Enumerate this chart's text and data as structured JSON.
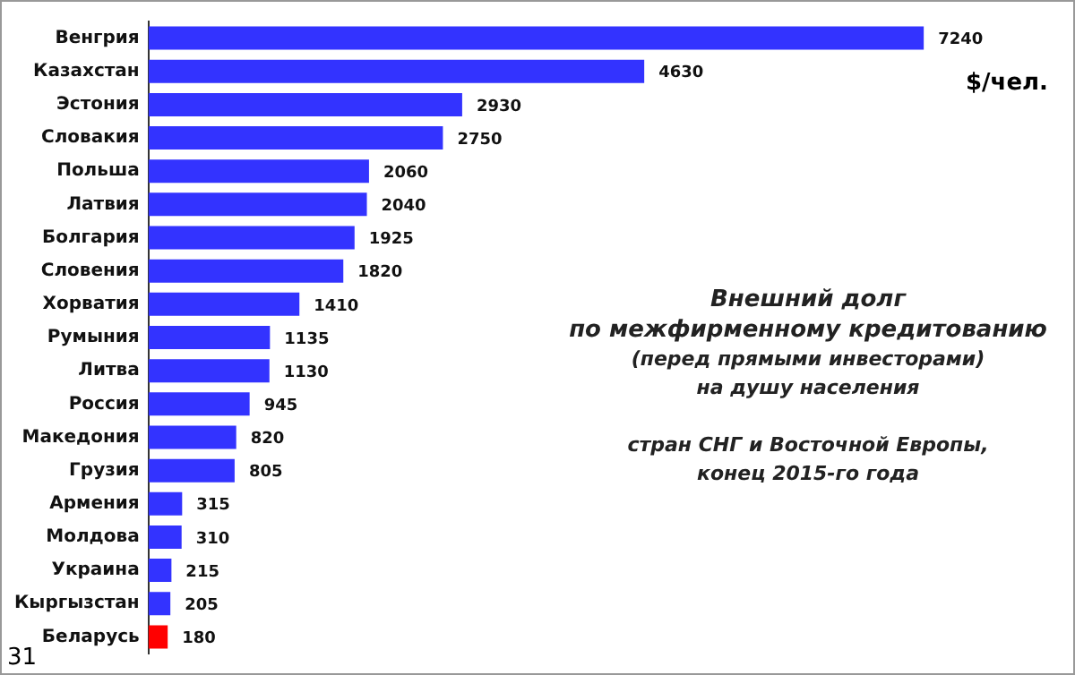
{
  "chart_data": {
    "type": "bar",
    "orientation": "horizontal",
    "title": "Внешний долг\nпо межфирменному кредитованию",
    "subtitle": "(перед прямыми инвесторами)\nна душу населения\n\nстран СНГ и Восточной Европы,\nконец 2015-го года",
    "xlabel": "$/чел.",
    "annotations": [
      "31"
    ],
    "categories": [
      "Венгрия",
      "Казахстан",
      "Эстония",
      "Словакия",
      "Польша",
      "Латвия",
      "Болгария",
      "Словения",
      "Хорватия",
      "Румыния",
      "Литва",
      "Россия",
      "Македония",
      "Грузия",
      "Армения",
      "Молдова",
      "Украина",
      "Кыргызстан",
      "Беларусь"
    ],
    "values": [
      7240,
      4630,
      2930,
      2750,
      2060,
      2040,
      1925,
      1820,
      1410,
      1135,
      1130,
      945,
      820,
      805,
      315,
      310,
      215,
      205,
      180
    ],
    "colors": [
      "#3333ff",
      "#3333ff",
      "#3333ff",
      "#3333ff",
      "#3333ff",
      "#3333ff",
      "#3333ff",
      "#3333ff",
      "#3333ff",
      "#3333ff",
      "#3333ff",
      "#3333ff",
      "#3333ff",
      "#3333ff",
      "#3333ff",
      "#3333ff",
      "#3333ff",
      "#3333ff",
      "#ff0000"
    ],
    "data_labels": true,
    "tick_labels": "y",
    "grid": false,
    "legend": false
  }
}
